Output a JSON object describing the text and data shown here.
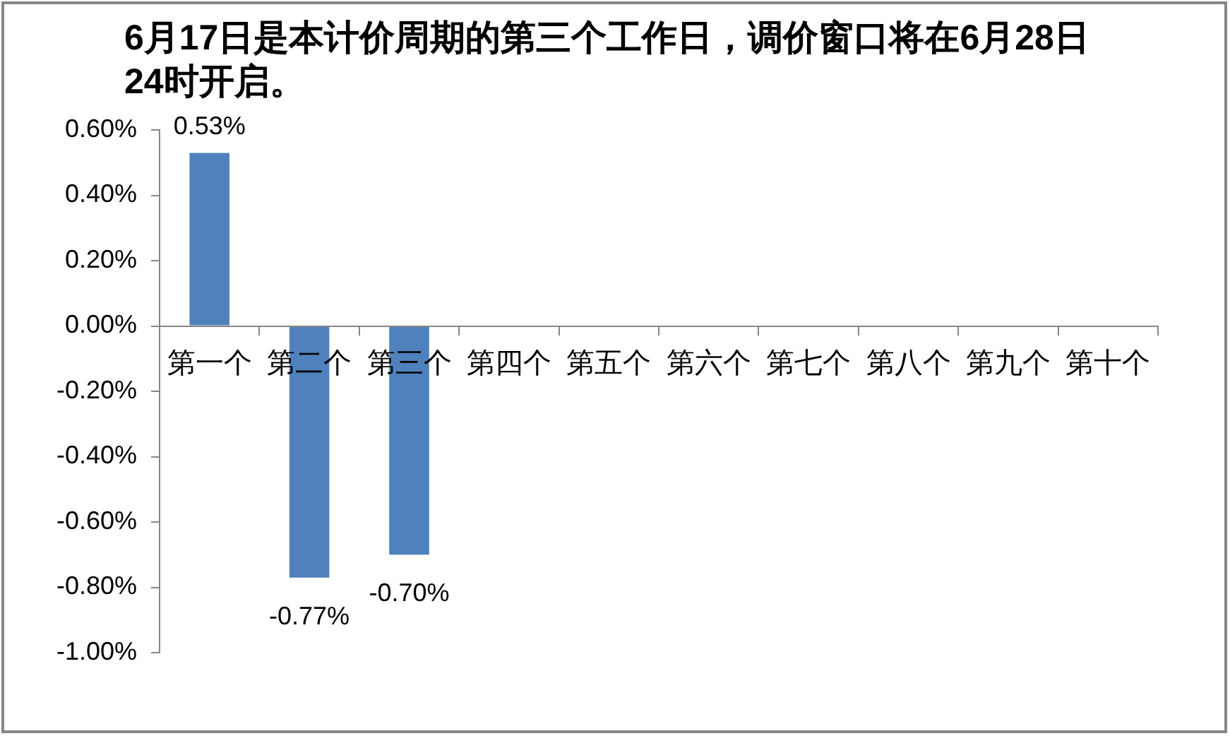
{
  "chart_data": {
    "type": "bar",
    "title": "6月17日是本计价周期的第三个工作日，调价窗口将在6月28日24时开启。",
    "categories": [
      "第一个",
      "第二个",
      "第三个",
      "第四个",
      "第五个",
      "第六个",
      "第七个",
      "第八个",
      "第九个",
      "第十个"
    ],
    "values": [
      0.53,
      -0.77,
      -0.7,
      null,
      null,
      null,
      null,
      null,
      null,
      null
    ],
    "value_labels": [
      "0.53%",
      "-0.77%",
      "-0.70%",
      null,
      null,
      null,
      null,
      null,
      null,
      null
    ],
    "color": "#4f81bd",
    "ylim": [
      -1,
      0.6
    ],
    "yticks": [
      {
        "value": -1,
        "label": "-1.00%"
      },
      {
        "value": -0.8,
        "label": "-0.80%"
      },
      {
        "value": -0.6,
        "label": "-0.60%"
      },
      {
        "value": -0.4,
        "label": "-0.40%"
      },
      {
        "value": -0.2,
        "label": "-0.20%"
      },
      {
        "value": 0,
        "label": "0.00%"
      },
      {
        "value": 0.2,
        "label": "0.20%"
      },
      {
        "value": 0.4,
        "label": "0.40%"
      },
      {
        "value": 0.6,
        "label": "0.60%"
      }
    ]
  }
}
